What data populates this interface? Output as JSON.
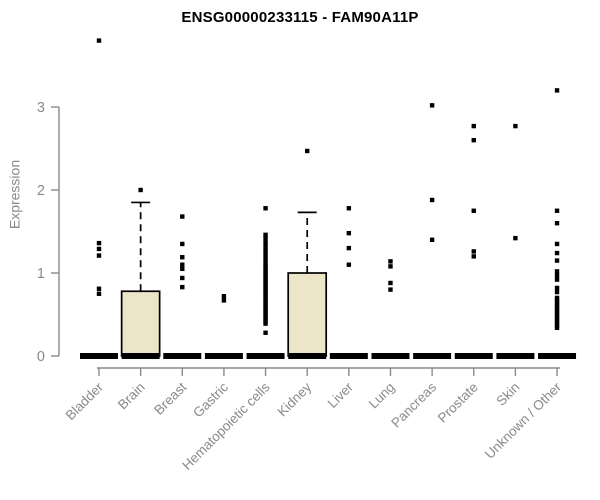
{
  "title": "ENSG00000233115 - FAM90A11P",
  "colors": {
    "title": "#000000",
    "axis": "#8a8a8a",
    "tick_label": "#8a8a8a",
    "box_fill": "#ece5c8",
    "box_stroke": "#000000",
    "point": "#000000",
    "background": "#ffffff"
  },
  "chart_data": {
    "type": "boxplot",
    "title": "ENSG00000233115 - FAM90A11P",
    "ylabel": "Expression",
    "xlabel": "",
    "ylim": [
      0,
      3.9
    ],
    "yticks": [
      0,
      1,
      2,
      3
    ],
    "grid": "off",
    "legend": "none",
    "categories": [
      "Bladder",
      "Brain",
      "Breast",
      "Gastric",
      "Hematopoietic cells",
      "Kidney",
      "Liver",
      "Lung",
      "Pancreas",
      "Prostate",
      "Skin",
      "Unknown / Other"
    ],
    "series": [
      {
        "name": "Bladder",
        "median": 0,
        "q1": 0,
        "q3": 0,
        "whisker_high": null,
        "points": [
          3.8,
          1.36,
          1.29,
          1.21,
          0.81,
          0.75
        ]
      },
      {
        "name": "Brain",
        "median": 0,
        "q1": 0,
        "q3": 0.78,
        "whisker_high": 1.85,
        "points": [
          2.0
        ]
      },
      {
        "name": "Breast",
        "median": 0,
        "q1": 0,
        "q3": 0,
        "whisker_high": null,
        "points": [
          1.68,
          1.35,
          1.19,
          1.1,
          1.05,
          0.94,
          0.83
        ]
      },
      {
        "name": "Gastric",
        "median": 0,
        "q1": 0,
        "q3": 0,
        "whisker_high": null,
        "points": [
          0.72,
          0.67
        ]
      },
      {
        "name": "Hematopoietic cells",
        "median": 0,
        "q1": 0,
        "q3": 0,
        "whisker_high": null,
        "points": [
          1.78,
          1.46,
          1.42,
          1.37,
          1.33,
          1.28,
          1.24,
          1.2,
          1.16,
          1.12,
          1.08,
          1.05,
          1.02,
          0.99,
          0.96,
          0.93,
          0.9,
          0.87,
          0.84,
          0.81,
          0.78,
          0.75,
          0.72,
          0.69,
          0.66,
          0.63,
          0.6,
          0.57,
          0.54,
          0.51,
          0.48,
          0.45,
          0.42,
          0.39,
          0.28
        ]
      },
      {
        "name": "Kidney",
        "median": 0,
        "q1": 0,
        "q3": 1.0,
        "whisker_high": 1.73,
        "points": [
          2.47
        ]
      },
      {
        "name": "Liver",
        "median": 0,
        "q1": 0,
        "q3": 0,
        "whisker_high": null,
        "points": [
          1.78,
          1.48,
          1.3,
          1.1
        ]
      },
      {
        "name": "Lung",
        "median": 0,
        "q1": 0,
        "q3": 0,
        "whisker_high": null,
        "points": [
          1.14,
          1.08,
          0.88,
          0.8
        ]
      },
      {
        "name": "Pancreas",
        "median": 0,
        "q1": 0,
        "q3": 0,
        "whisker_high": null,
        "points": [
          3.02,
          1.88,
          1.4
        ]
      },
      {
        "name": "Prostate",
        "median": 0,
        "q1": 0,
        "q3": 0,
        "whisker_high": null,
        "points": [
          2.77,
          2.6,
          1.75,
          1.26,
          1.2
        ]
      },
      {
        "name": "Skin",
        "median": 0,
        "q1": 0,
        "q3": 0,
        "whisker_high": null,
        "points": [
          2.77,
          1.42
        ]
      },
      {
        "name": "Unknown / Other",
        "median": 0,
        "q1": 0,
        "q3": 0,
        "whisker_high": null,
        "points": [
          3.2,
          1.75,
          1.6,
          1.35,
          1.24,
          1.15,
          1.02,
          0.97,
          0.92,
          0.82,
          0.77,
          0.7,
          0.67,
          0.64,
          0.61,
          0.58,
          0.55,
          0.52,
          0.49,
          0.46,
          0.43,
          0.4,
          0.37,
          0.34
        ]
      }
    ]
  }
}
